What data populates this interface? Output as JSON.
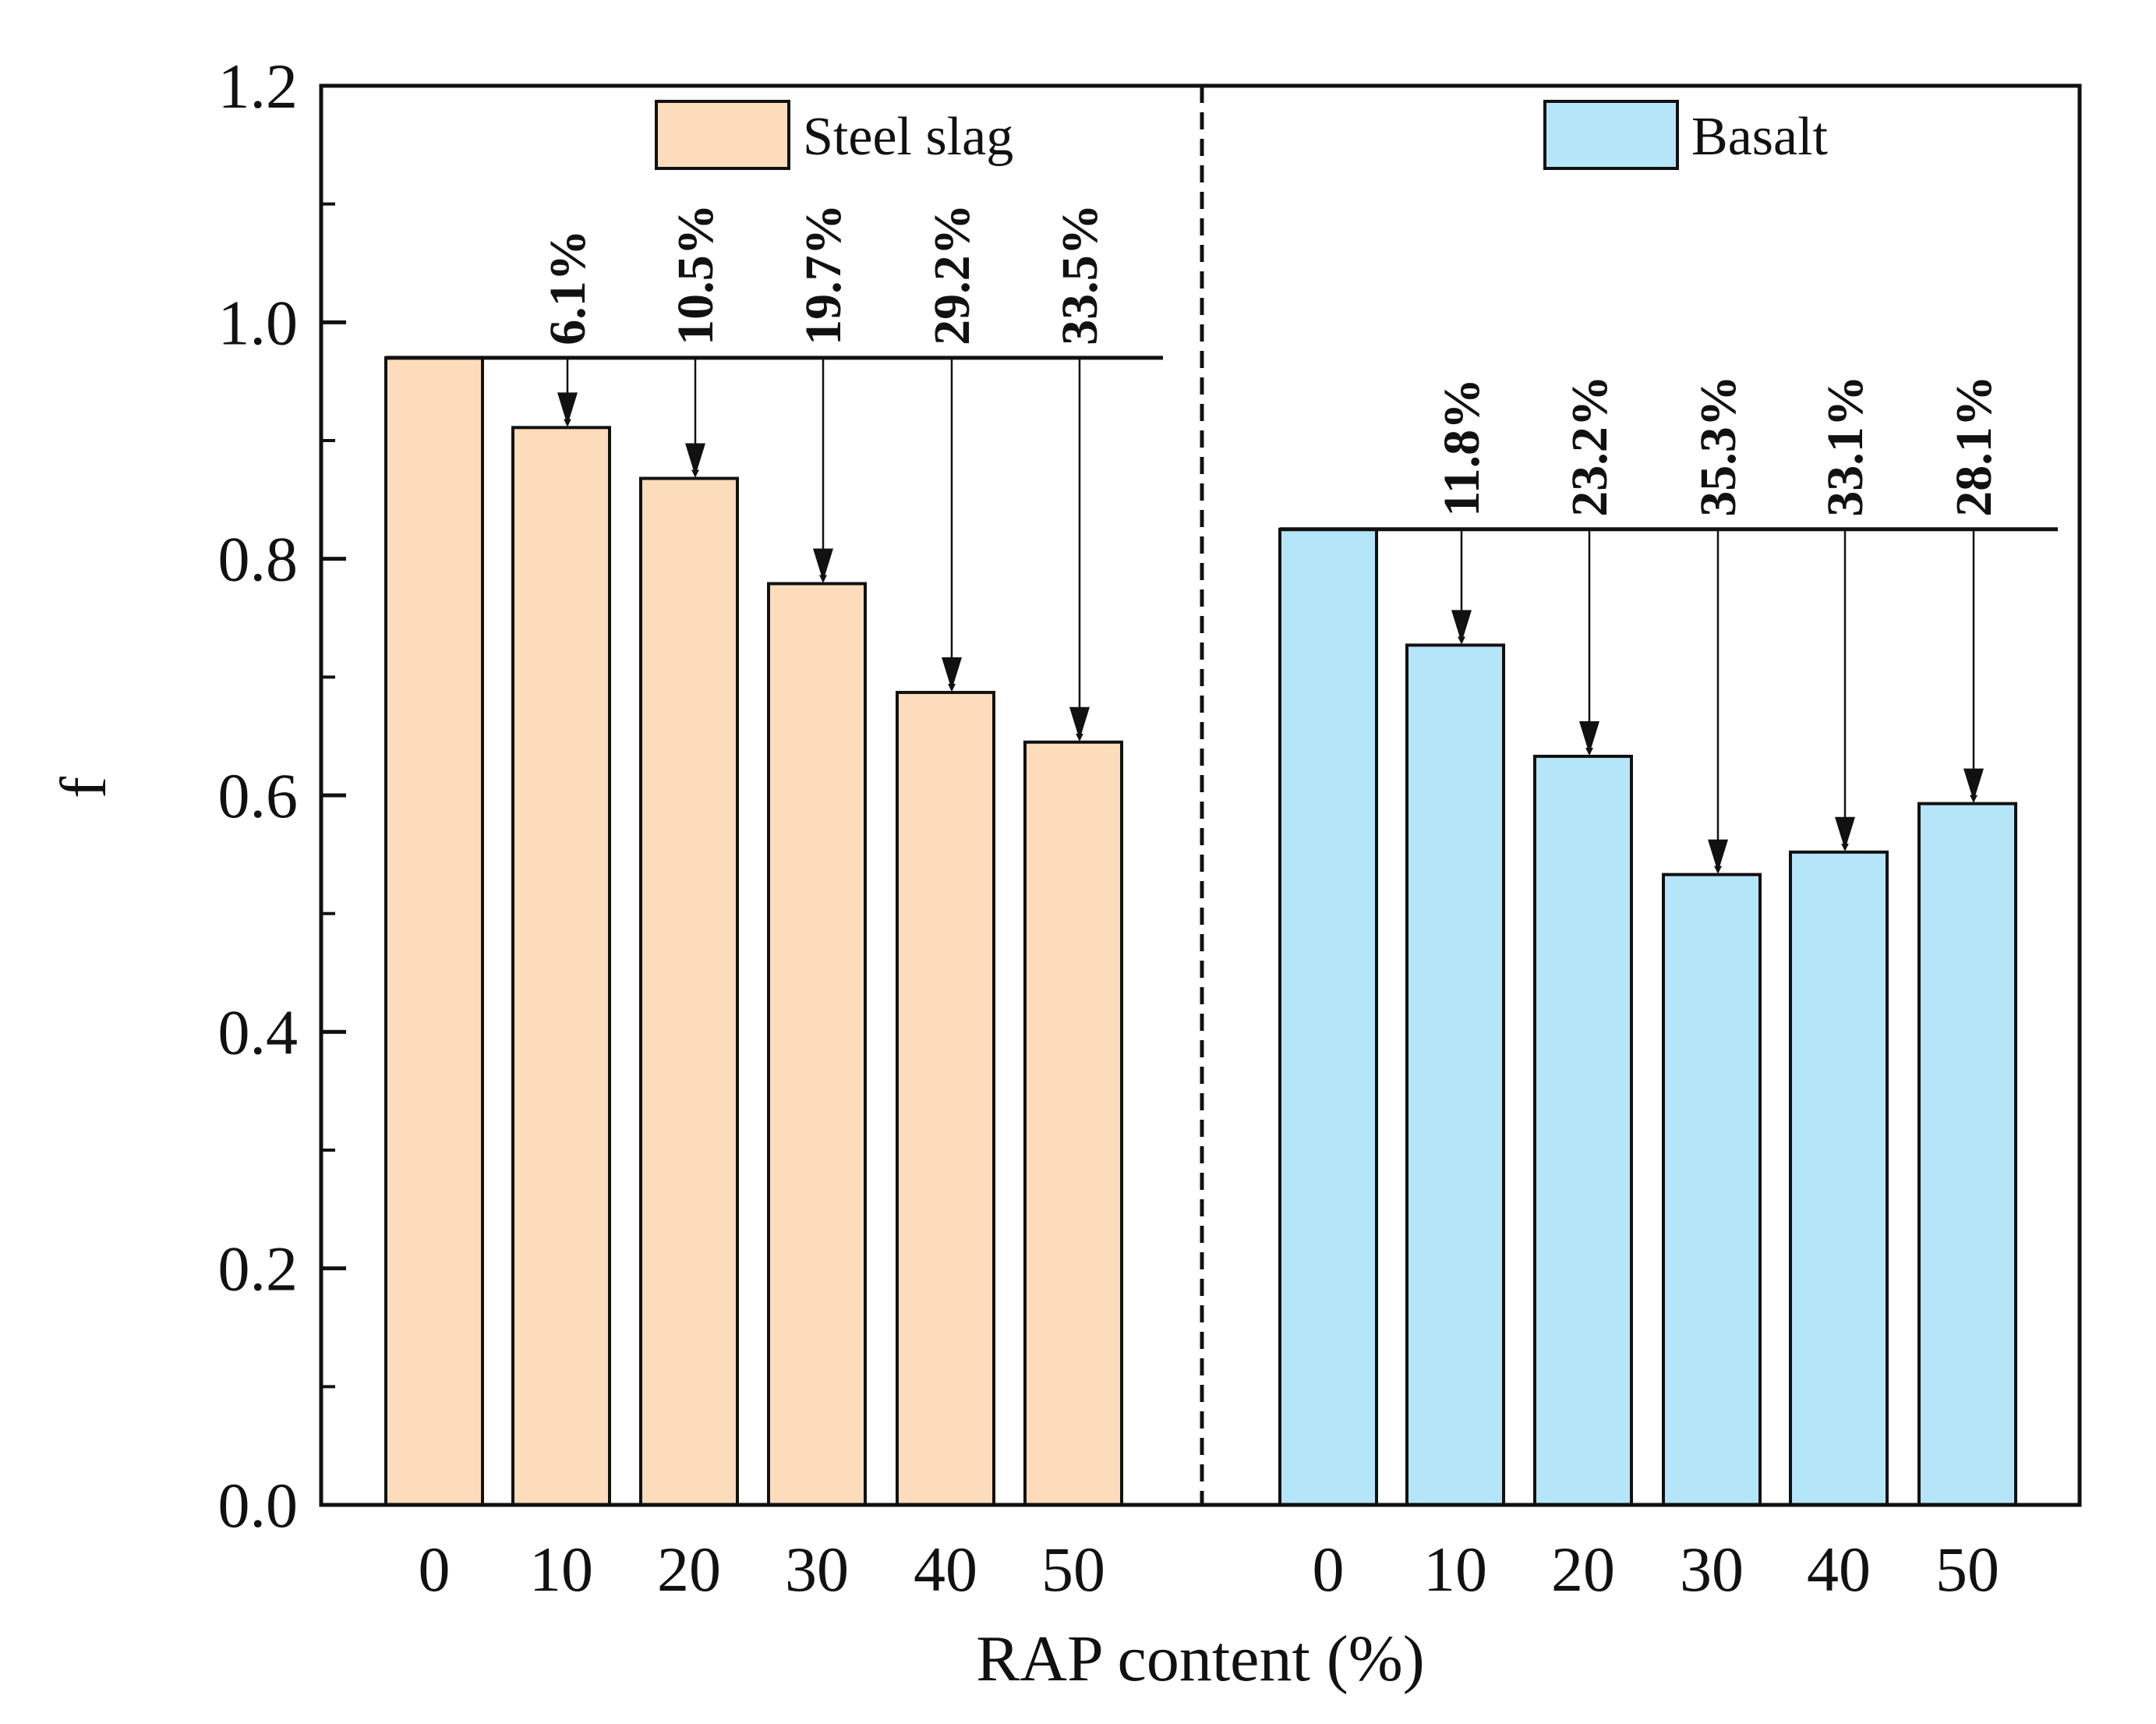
{
  "chart_data": {
    "type": "bar",
    "title": "",
    "xlabel": "RAP content (%)",
    "ylabel": "f",
    "ylim": [
      0,
      1.2
    ],
    "yticks": [
      "0.0",
      "0.2",
      "0.4",
      "0.6",
      "0.8",
      "1.0",
      "1.2"
    ],
    "grid": false,
    "series": [
      {
        "name": "Steel slag",
        "color": "#FDDCBC",
        "categories": [
          "0",
          "10",
          "20",
          "30",
          "40",
          "50"
        ],
        "values": [
          0.97,
          0.911,
          0.868,
          0.779,
          0.687,
          0.645
        ],
        "reductions": [
          "",
          "6.1%",
          "10.5%",
          "19.7%",
          "29.2%",
          "33.5%"
        ]
      },
      {
        "name": "Basalt",
        "color": "#B5E5F8",
        "categories": [
          "0",
          "10",
          "20",
          "30",
          "40",
          "50"
        ],
        "values": [
          0.825,
          0.727,
          0.633,
          0.533,
          0.552,
          0.593
        ],
        "reductions": [
          "",
          "11.8%",
          "23.2%",
          "35.3%",
          "33.1%",
          "28.1%"
        ]
      }
    ]
  }
}
